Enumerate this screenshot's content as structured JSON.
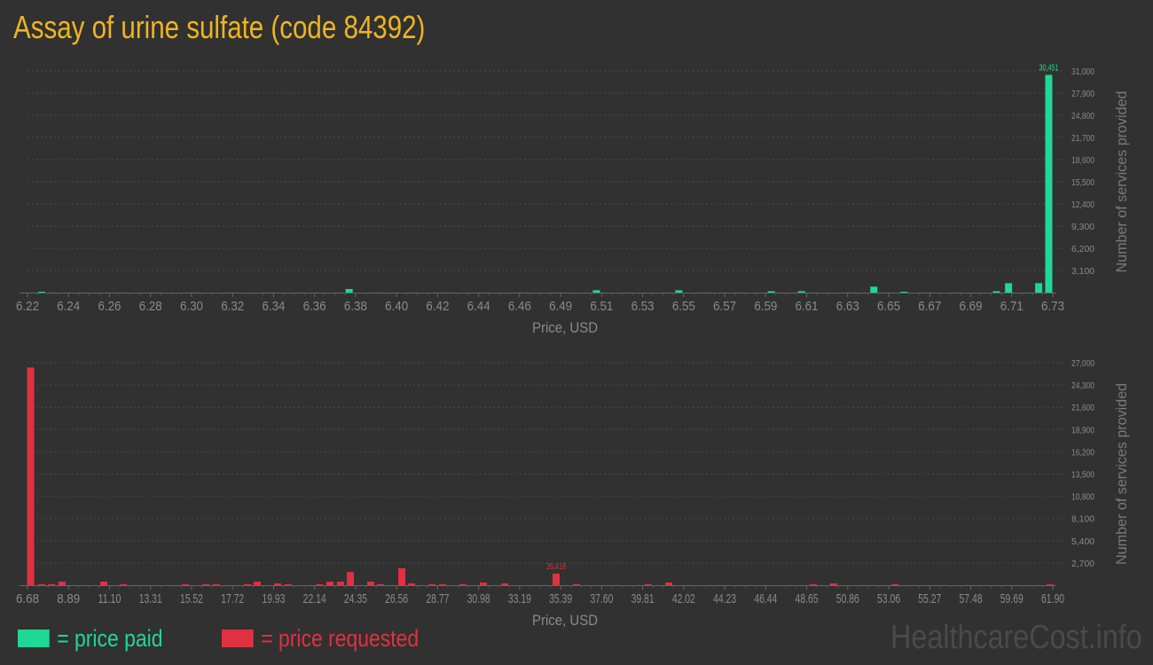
{
  "title": "Assay of urine sulfate (code 84392)",
  "colors": {
    "paid": "#1ed896",
    "requested": "#e03142",
    "title": "#f0b51e"
  },
  "legend": {
    "paid": "= price paid",
    "requested": "= price requested"
  },
  "watermark": "HealthcareCost.info",
  "chart_data": [
    {
      "type": "bar",
      "series_key": "paid",
      "xlabel": "Price, USD",
      "ylabel": "Number of services provided",
      "xlim": [
        6.22,
        6.73
      ],
      "ylim": [
        0,
        31000
      ],
      "xticks": [
        "6.22",
        "6.24",
        "6.26",
        "6.28",
        "6.30",
        "6.32",
        "6.34",
        "6.36",
        "6.38",
        "6.40",
        "6.42",
        "6.44",
        "6.46",
        "6.49",
        "6.51",
        "6.53",
        "6.55",
        "6.57",
        "6.59",
        "6.61",
        "6.63",
        "6.65",
        "6.67",
        "6.69",
        "6.71",
        "6.73"
      ],
      "yticks": [
        "3,100",
        "6,200",
        "9,300",
        "12,400",
        "15,500",
        "18,600",
        "21,700",
        "24,800",
        "27,900",
        "31,000"
      ],
      "grid": true,
      "max_label": "30,451",
      "bars": [
        {
          "x": 6.227,
          "y": 100
        },
        {
          "x": 6.38,
          "y": 500
        },
        {
          "x": 6.503,
          "y": 330
        },
        {
          "x": 6.544,
          "y": 330
        },
        {
          "x": 6.59,
          "y": 200
        },
        {
          "x": 6.605,
          "y": 200
        },
        {
          "x": 6.641,
          "y": 830
        },
        {
          "x": 6.656,
          "y": 80
        },
        {
          "x": 6.702,
          "y": 200
        },
        {
          "x": 6.708,
          "y": 1320
        },
        {
          "x": 6.723,
          "y": 1320
        },
        {
          "x": 6.728,
          "y": 30451
        }
      ]
    },
    {
      "type": "bar",
      "series_key": "requested",
      "xlabel": "Price, USD",
      "ylabel": "Number of services provided",
      "xlim": [
        6.68,
        61.9
      ],
      "ylim": [
        0,
        27000
      ],
      "xticks": [
        "6.68",
        "8.89",
        "11.10",
        "13.31",
        "15.52",
        "17.72",
        "19.93",
        "22.14",
        "24.35",
        "26.56",
        "28.77",
        "30.98",
        "33.19",
        "35.39",
        "37.60",
        "39.81",
        "42.02",
        "44.23",
        "46.44",
        "48.65",
        "50.86",
        "53.06",
        "55.27",
        "57.48",
        "59.69",
        "61.90"
      ],
      "yticks": [
        "2,700",
        "5,400",
        "8,100",
        "10,800",
        "13,500",
        "16,200",
        "18,900",
        "21,600",
        "24,300",
        "27,000"
      ],
      "grid": true,
      "max_label": "26,418",
      "bars": [
        {
          "x": 6.85,
          "y": 26418
        },
        {
          "x": 7.44,
          "y": 100
        },
        {
          "x": 7.97,
          "y": 100
        },
        {
          "x": 8.54,
          "y": 430
        },
        {
          "x": 10.79,
          "y": 430
        },
        {
          "x": 11.84,
          "y": 100
        },
        {
          "x": 15.18,
          "y": 100
        },
        {
          "x": 16.28,
          "y": 100
        },
        {
          "x": 16.85,
          "y": 100
        },
        {
          "x": 18.53,
          "y": 100
        },
        {
          "x": 19.05,
          "y": 430
        },
        {
          "x": 20.15,
          "y": 215
        },
        {
          "x": 20.72,
          "y": 100
        },
        {
          "x": 22.4,
          "y": 100
        },
        {
          "x": 22.97,
          "y": 430
        },
        {
          "x": 23.54,
          "y": 430
        },
        {
          "x": 24.07,
          "y": 1600
        },
        {
          "x": 25.17,
          "y": 430
        },
        {
          "x": 25.69,
          "y": 100
        },
        {
          "x": 26.84,
          "y": 2050
        },
        {
          "x": 27.36,
          "y": 215
        },
        {
          "x": 28.46,
          "y": 100
        },
        {
          "x": 29.04,
          "y": 100
        },
        {
          "x": 30.13,
          "y": 100
        },
        {
          "x": 31.23,
          "y": 320
        },
        {
          "x": 32.38,
          "y": 215
        },
        {
          "x": 35.15,
          "y": 1400
        },
        {
          "x": 36.25,
          "y": 100
        },
        {
          "x": 40.12,
          "y": 100
        },
        {
          "x": 41.22,
          "y": 320
        },
        {
          "x": 49.0,
          "y": 100
        },
        {
          "x": 50.1,
          "y": 215
        },
        {
          "x": 53.4,
          "y": 100
        },
        {
          "x": 61.76,
          "y": 100
        }
      ]
    }
  ]
}
